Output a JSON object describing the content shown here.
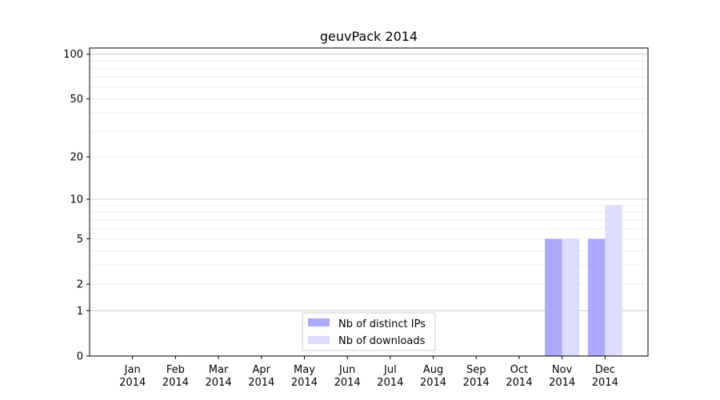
{
  "chart_data": {
    "type": "bar",
    "title": "geuvPack 2014",
    "xlabel": "",
    "ylabel": "",
    "y_scale": "symlog",
    "ylim": [
      0,
      110
    ],
    "y_ticks": [
      0,
      1,
      2,
      5,
      10,
      20,
      50,
      100
    ],
    "categories": [
      [
        "Jan",
        "2014"
      ],
      [
        "Feb",
        "2014"
      ],
      [
        "Mar",
        "2014"
      ],
      [
        "Apr",
        "2014"
      ],
      [
        "May",
        "2014"
      ],
      [
        "Jun",
        "2014"
      ],
      [
        "Jul",
        "2014"
      ],
      [
        "Aug",
        "2014"
      ],
      [
        "Sep",
        "2014"
      ],
      [
        "Oct",
        "2014"
      ],
      [
        "Nov",
        "2014"
      ],
      [
        "Dec",
        "2014"
      ]
    ],
    "series": [
      {
        "name": "Nb of distinct IPs",
        "color": "#aaaaff",
        "values": [
          0,
          0,
          0,
          0,
          0,
          0,
          0,
          0,
          0,
          0,
          5,
          5
        ]
      },
      {
        "name": "Nb of downloads",
        "color": "#ddddff",
        "values": [
          0,
          0,
          0,
          0,
          0,
          0,
          0,
          0,
          0,
          0,
          5,
          9
        ]
      }
    ],
    "grid": "horizontal",
    "legend_position": "bottom-center"
  }
}
